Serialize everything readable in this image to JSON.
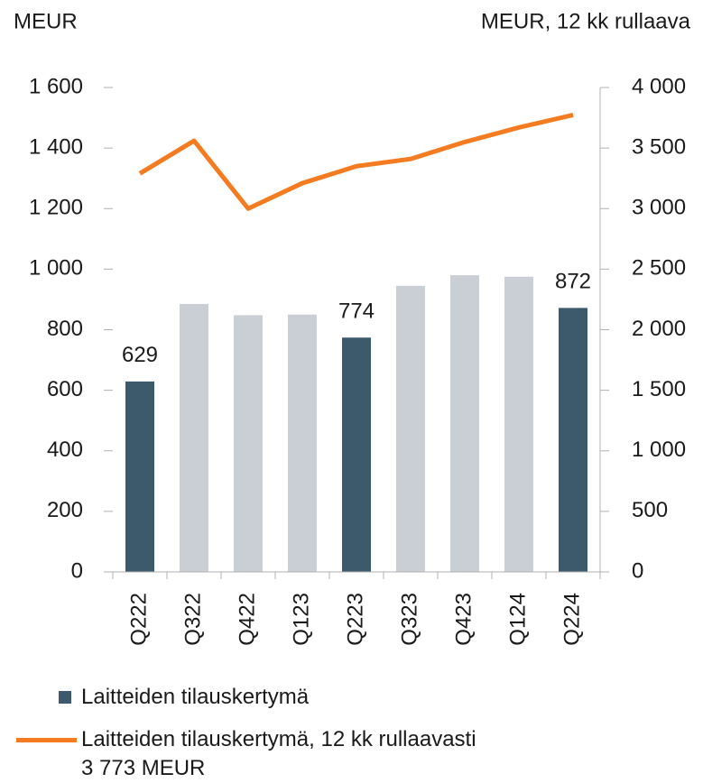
{
  "chart_data": {
    "type": "bar_line",
    "y_axis_label": "MEUR",
    "y2_axis_label": "MEUR, 12 kk rullaava",
    "categories": [
      "Q222",
      "Q322",
      "Q422",
      "Q123",
      "Q223",
      "Q323",
      "Q423",
      "Q124",
      "Q224"
    ],
    "series": [
      {
        "name": "Laitteiden tilauskertymä",
        "type": "bar",
        "color": "#3d5a6c",
        "colors": [
          "#3d5a6c",
          "#c9cfd4",
          "#c9cfd4",
          "#c9cfd4",
          "#3d5a6c",
          "#c9cfd4",
          "#c9cfd4",
          "#c9cfd4",
          "#3d5a6c"
        ],
        "values": [
          629,
          885,
          848,
          850,
          774,
          945,
          980,
          975,
          872
        ],
        "show_labels": [
          true,
          false,
          false,
          false,
          true,
          false,
          false,
          false,
          true
        ]
      },
      {
        "name": "Laitteiden tilauskertymä, 12 kk rullaavasti 3 773 MEUR",
        "type": "line",
        "axis": "y2",
        "color": "#f47b20",
        "values": [
          3290,
          3560,
          3000,
          3210,
          3350,
          3410,
          3550,
          3670,
          3773
        ]
      }
    ],
    "ylim": [
      0,
      1600
    ],
    "yticks": [
      0,
      200,
      400,
      600,
      800,
      {
        "value": 1000,
        "label": "1 000"
      },
      {
        "value": 1200,
        "label": "1 200"
      },
      {
        "value": 1400,
        "label": "1 400"
      },
      {
        "value": 1600,
        "label": "1 600"
      }
    ],
    "y2lim": [
      0,
      4000
    ],
    "y2ticks": [
      0,
      500,
      {
        "value": 1000,
        "label": "1 000"
      },
      {
        "value": 1500,
        "label": "1 500"
      },
      {
        "value": 2000,
        "label": "2 000"
      },
      {
        "value": 2500,
        "label": "2 500"
      },
      {
        "value": 3000,
        "label": "3 000"
      },
      {
        "value": 3500,
        "label": "3 500"
      },
      {
        "value": 4000,
        "label": "4 000"
      }
    ],
    "grid": false,
    "legend": "bottom-left"
  }
}
